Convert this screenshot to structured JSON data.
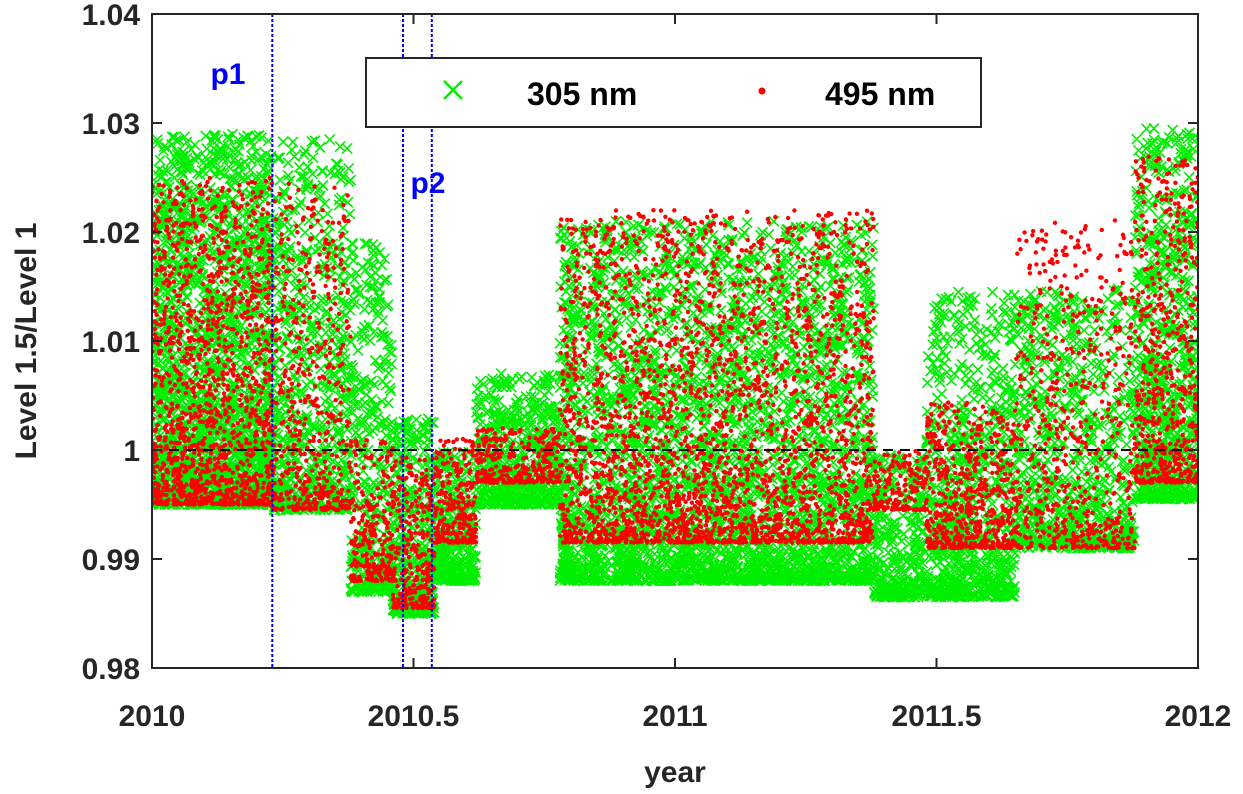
{
  "chart_data": {
    "type": "scatter",
    "title": "",
    "xlabel": "year",
    "ylabel": "Level 1.5/Level 1",
    "xlim": [
      2010,
      2012
    ],
    "ylim": [
      0.98,
      1.04
    ],
    "x_ticks": [
      "2010",
      "2010.5",
      "2011",
      "2011.5",
      "2012"
    ],
    "y_ticks": [
      "0.98",
      "0.99",
      "1",
      "1.01",
      "1.02",
      "1.03",
      "1.04"
    ],
    "grid": false,
    "legend_position": "top-center",
    "reference_line": {
      "y": 1.0,
      "style": "dashed",
      "color": "#000000"
    },
    "annotations": [
      {
        "text": "p1",
        "x": 2010.23,
        "color": "#0000ff"
      },
      {
        "text": "p2",
        "x_range": [
          2010.48,
          2010.535
        ],
        "color": "#0000ff"
      }
    ],
    "series": [
      {
        "name": "305 nm",
        "marker": "x",
        "color": "#00ee00",
        "segments": [
          {
            "x": [
              2010.0,
              2010.23
            ],
            "y": [
              0.995,
              1.029
            ],
            "density": 1800
          },
          {
            "x": [
              2010.23,
              2010.38
            ],
            "y": [
              0.9945,
              1.0285
            ],
            "density": 600
          },
          {
            "x": [
              2010.38,
              2010.46
            ],
            "y": [
              0.987,
              1.019
            ],
            "density": 350
          },
          {
            "x": [
              2010.46,
              2010.54
            ],
            "y": [
              0.985,
              1.003
            ],
            "density": 350
          },
          {
            "x": [
              2010.54,
              2010.62
            ],
            "y": [
              0.988,
              1.0
            ],
            "density": 300
          },
          {
            "x": [
              2010.62,
              2010.78
            ],
            "y": [
              0.995,
              1.007
            ],
            "density": 500
          },
          {
            "x": [
              2010.78,
              2011.38
            ],
            "y": [
              0.988,
              1.021
            ],
            "density": 3000
          },
          {
            "x": [
              2011.38,
              2011.48
            ],
            "y": [
              0.9865,
              0.9995
            ],
            "density": 300
          },
          {
            "x": [
              2011.48,
              2011.65
            ],
            "y": [
              0.9865,
              1.0145
            ],
            "density": 700
          },
          {
            "x": [
              2011.65,
              2011.88
            ],
            "y": [
              0.991,
              1.015
            ],
            "density": 700
          },
          {
            "x": [
              2011.88,
              2012.0
            ],
            "y": [
              0.9955,
              1.0295
            ],
            "density": 700
          }
        ]
      },
      {
        "name": "495 nm",
        "marker": "dot",
        "color": "#ff0000",
        "segments": [
          {
            "x": [
              2010.0,
              2010.23
            ],
            "y": [
              0.995,
              1.025
            ],
            "density": 1400
          },
          {
            "x": [
              2010.23,
              2010.38
            ],
            "y": [
              0.9945,
              1.0245
            ],
            "density": 500
          },
          {
            "x": [
              2010.38,
              2010.46
            ],
            "y": [
              0.988,
              1.001
            ],
            "density": 250
          },
          {
            "x": [
              2010.46,
              2010.54
            ],
            "y": [
              0.9855,
              0.9995
            ],
            "density": 300
          },
          {
            "x": [
              2010.54,
              2010.62
            ],
            "y": [
              0.9915,
              1.001
            ],
            "density": 250
          },
          {
            "x": [
              2010.62,
              2010.78
            ],
            "y": [
              0.997,
              1.002
            ],
            "density": 300
          },
          {
            "x": [
              2010.78,
              2011.38
            ],
            "y": [
              0.9915,
              1.022
            ],
            "density": 2600
          },
          {
            "x": [
              2011.38,
              2011.48
            ],
            "y": [
              0.9945,
              1.0
            ],
            "density": 150
          },
          {
            "x": [
              2011.48,
              2011.65
            ],
            "y": [
              0.991,
              1.0045
            ],
            "density": 550
          },
          {
            "x": [
              2011.65,
              2011.88
            ],
            "y": [
              0.991,
              1.0215
            ],
            "density": 600
          },
          {
            "x": [
              2011.88,
              2012.0
            ],
            "y": [
              0.997,
              1.027
            ],
            "density": 550
          }
        ]
      }
    ]
  }
}
